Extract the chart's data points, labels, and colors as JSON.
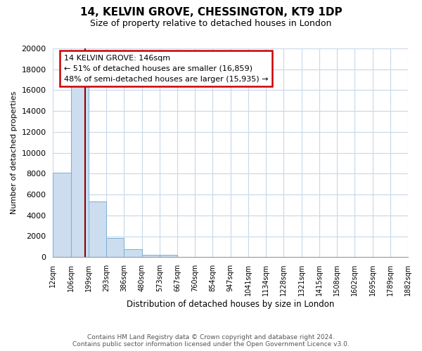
{
  "title": "14, KELVIN GROVE, CHESSINGTON, KT9 1DP",
  "subtitle": "Size of property relative to detached houses in London",
  "xlabel": "Distribution of detached houses by size in London",
  "ylabel": "Number of detached properties",
  "bar_values": [
    8100,
    16600,
    5300,
    1800,
    750,
    250,
    200,
    0,
    0,
    0,
    0,
    0,
    0,
    0,
    0,
    0,
    0,
    0,
    0,
    0
  ],
  "bar_labels": [
    "12sqm",
    "106sqm",
    "199sqm",
    "293sqm",
    "386sqm",
    "480sqm",
    "573sqm",
    "667sqm",
    "760sqm",
    "854sqm",
    "947sqm",
    "1041sqm",
    "1134sqm",
    "1228sqm",
    "1321sqm",
    "1415sqm",
    "1508sqm",
    "1602sqm",
    "1695sqm",
    "1789sqm",
    "1882sqm"
  ],
  "bar_color": "#ccddf0",
  "bar_edge_color": "#7bafd4",
  "property_label": "14 KELVIN GROVE: 146sqm",
  "annotation_line1": "← 51% of detached houses are smaller (16,859)",
  "annotation_line2": "48% of semi-detached houses are larger (15,935) →",
  "annotation_box_color": "#ffffff",
  "annotation_box_edge_color": "#cc0000",
  "red_line_color": "#8b0000",
  "ylim": [
    0,
    20000
  ],
  "yticks": [
    0,
    2000,
    4000,
    6000,
    8000,
    10000,
    12000,
    14000,
    16000,
    18000,
    20000
  ],
  "footer_line1": "Contains HM Land Registry data © Crown copyright and database right 2024.",
  "footer_line2": "Contains public sector information licensed under the Open Government Licence v3.0.",
  "background_color": "#ffffff",
  "grid_color": "#c8d8e8"
}
